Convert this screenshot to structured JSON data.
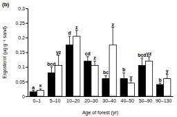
{
  "chart_data": {
    "type": "bar",
    "title": "(b)",
    "y_label": "Ergosterol (μg g⁻¹ sand)",
    "x_label": "Age of forest (yr)",
    "categories": [
      "0–1",
      "5–10",
      "10–20",
      "20–30",
      "30–40",
      "40–50",
      "50–90",
      "90–130"
    ],
    "series": [
      {
        "color": "#000000",
        "values": [
          0.015,
          0.08,
          0.175,
          0.12,
          0.06,
          0.06,
          0.105,
          0.04
        ],
        "errors": [
          0.005,
          0.02,
          0.03,
          0.015,
          0.01,
          0.02,
          0.025,
          0.005
        ],
        "letters": [
          "a",
          "bcd",
          "d",
          "cd",
          "bc",
          "b",
          "bcd",
          "b"
        ]
      },
      {
        "color": "#ffffff",
        "values": [
          0.02,
          0.105,
          0.205,
          0.105,
          0.175,
          0.045,
          0.12,
          0.06
        ],
        "errors": [
          0.005,
          0.035,
          0.02,
          0.015,
          0.06,
          0.01,
          0.015,
          0.015
        ],
        "letters": [
          "x",
          "yz",
          "z",
          "z",
          "z",
          "y",
          "yz",
          "y"
        ]
      }
    ],
    "ylim": [
      0,
      0.3
    ],
    "yticks": [
      0,
      0.05,
      0.1,
      0.15,
      0.2,
      0.25,
      0.3
    ],
    "grid": false
  }
}
